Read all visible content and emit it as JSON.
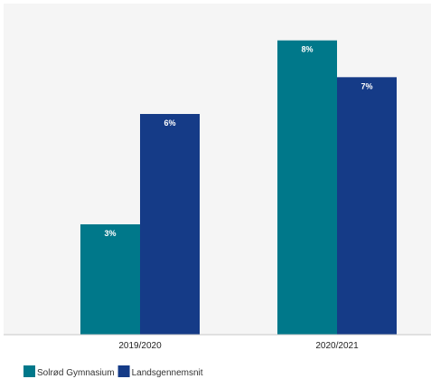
{
  "chart_data": {
    "type": "bar",
    "title": "",
    "xlabel": "",
    "ylabel": "",
    "categories": [
      "2019/2020",
      "2020/2021"
    ],
    "ylim": [
      0,
      9
    ],
    "grid": false,
    "legend_position": "bottom-left",
    "series": [
      {
        "name": "Solrød Gymnasium",
        "values": [
          3,
          8
        ],
        "labels": [
          "3%",
          "8%"
        ],
        "color": "#00788a"
      },
      {
        "name": "Landsgennemsnit",
        "values": [
          6,
          7
        ],
        "labels": [
          "6%",
          "7%"
        ],
        "color": "#153b87"
      }
    ]
  },
  "colors": {
    "plot_background": "#f5f5f5",
    "page_background": "#ffffff",
    "axis_line": "#c8c8c8"
  }
}
